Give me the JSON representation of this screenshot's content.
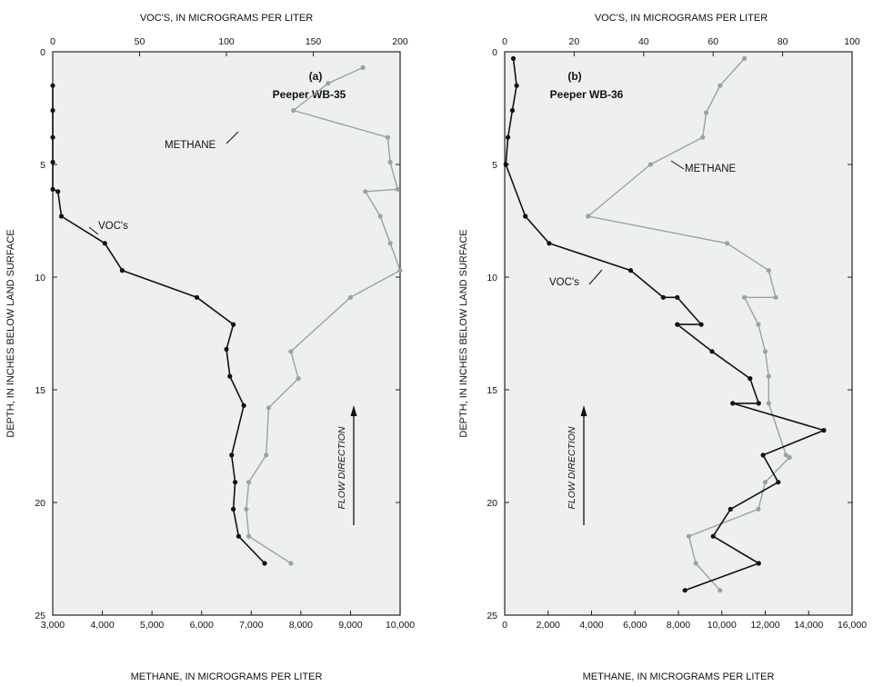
{
  "chart_data": [
    {
      "type": "line",
      "panel_label": "(a)",
      "site": "Peeper WB-35",
      "top_axis_title": "VOC'S, IN MICROGRAMS PER LITER",
      "bottom_axis_title": "METHANE, IN MICROGRAMS PER LITER",
      "ylabel": "DEPTH, IN INCHES BELOW LAND SURFACE",
      "top_axis": {
        "range": [
          0,
          200
        ],
        "ticks": [
          0,
          50,
          100,
          150,
          200
        ],
        "tick_labels": [
          "0",
          "50",
          "100",
          "150",
          "200"
        ]
      },
      "bottom_axis": {
        "range": [
          3000,
          10000
        ],
        "ticks": [
          3000,
          4000,
          5000,
          6000,
          7000,
          8000,
          9000,
          10000
        ],
        "tick_labels": [
          "3,000",
          "4,000",
          "5,000",
          "6,000",
          "7,000",
          "8,000",
          "9,000",
          "10,000"
        ]
      },
      "y_axis": {
        "range": [
          0,
          25
        ],
        "inverted": true,
        "ticks": [
          0,
          5,
          10,
          15,
          20,
          25
        ],
        "tick_labels": [
          "0",
          "5",
          "10",
          "15",
          "20",
          "25"
        ]
      },
      "annotations": {
        "flow": "FLOW DIRECTION"
      },
      "series": [
        {
          "name": "METHANE",
          "axis": "bottom",
          "color": "#9aa39d",
          "points": [
            {
              "value": 9250,
              "depth": 0.7
            },
            {
              "value": 8550,
              "depth": 1.4
            },
            {
              "value": 7850,
              "depth": 2.6
            },
            {
              "value": 9750,
              "depth": 3.8
            },
            {
              "value": 9800,
              "depth": 4.9
            },
            {
              "value": 9950,
              "depth": 6.1
            },
            {
              "value": 9300,
              "depth": 6.2
            },
            {
              "value": 9600,
              "depth": 7.3
            },
            {
              "value": 9800,
              "depth": 8.5
            },
            {
              "value": 10000,
              "depth": 9.7
            },
            {
              "value": 9000,
              "depth": 10.9
            },
            {
              "value": 7800,
              "depth": 13.3
            },
            {
              "value": 7950,
              "depth": 14.5
            },
            {
              "value": 7350,
              "depth": 15.8
            },
            {
              "value": 7300,
              "depth": 17.9
            },
            {
              "value": 6950,
              "depth": 19.1
            },
            {
              "value": 6900,
              "depth": 20.3
            },
            {
              "value": 6950,
              "depth": 21.5
            },
            {
              "value": 7800,
              "depth": 22.7
            }
          ]
        },
        {
          "name": "VOC's",
          "axis": "top",
          "color": "#111111",
          "points": [
            {
              "value": 0,
              "depth": 1.5
            },
            {
              "value": 0,
              "depth": 2.6
            },
            {
              "value": 0,
              "depth": 3.8
            },
            {
              "value": 0,
              "depth": 4.9
            },
            {
              "value": 0,
              "depth": 6.1
            },
            {
              "value": 3,
              "depth": 6.2
            },
            {
              "value": 5,
              "depth": 7.3
            },
            {
              "value": 30,
              "depth": 8.5
            },
            {
              "value": 40,
              "depth": 9.7
            },
            {
              "value": 83,
              "depth": 10.9
            },
            {
              "value": 104,
              "depth": 12.1
            },
            {
              "value": 100,
              "depth": 13.2
            },
            {
              "value": 102,
              "depth": 14.4
            },
            {
              "value": 110,
              "depth": 15.7
            },
            {
              "value": 103,
              "depth": 17.9
            },
            {
              "value": 105,
              "depth": 19.1
            },
            {
              "value": 104,
              "depth": 20.3
            },
            {
              "value": 107,
              "depth": 21.5
            },
            {
              "value": 122,
              "depth": 22.7
            }
          ]
        }
      ]
    },
    {
      "type": "line",
      "panel_label": "(b)",
      "site": "Peeper WB-36",
      "top_axis_title": "VOC'S, IN MICROGRAMS PER LITER",
      "bottom_axis_title": "METHANE, IN MICROGRAMS PER LITER",
      "ylabel": "DEPTH, IN INCHES BELOW LAND SURFACE",
      "top_axis": {
        "range": [
          0,
          100
        ],
        "ticks": [
          0,
          20,
          40,
          60,
          80,
          100
        ],
        "tick_labels": [
          "0",
          "20",
          "40",
          "60",
          "80",
          "100"
        ]
      },
      "bottom_axis": {
        "range": [
          0,
          16000
        ],
        "ticks": [
          0,
          2000,
          4000,
          6000,
          8000,
          10000,
          12000,
          14000,
          16000
        ],
        "tick_labels": [
          "0",
          "2,000",
          "4,000",
          "6,000",
          "8,000",
          "10,000",
          "12,000",
          "14,000",
          "16,000"
        ]
      },
      "y_axis": {
        "range": [
          0,
          25
        ],
        "inverted": true,
        "ticks": [
          0,
          5,
          10,
          15,
          20,
          25
        ],
        "tick_labels": [
          "0",
          "5",
          "10",
          "15",
          "20",
          "25"
        ]
      },
      "annotations": {
        "flow": "FLOW DIRECTION"
      },
      "series": [
        {
          "name": "METHANE",
          "axis": "top",
          "color": "#9aa39d",
          "points": [
            {
              "value": 69,
              "depth": 0.3
            },
            {
              "value": 62,
              "depth": 1.5
            },
            {
              "value": 58,
              "depth": 2.7
            },
            {
              "value": 57,
              "depth": 3.8
            },
            {
              "value": 42,
              "depth": 5.0
            },
            {
              "value": 24,
              "depth": 7.3
            },
            {
              "value": 64,
              "depth": 8.5
            },
            {
              "value": 76,
              "depth": 9.7
            },
            {
              "value": 78,
              "depth": 10.9
            },
            {
              "value": 69,
              "depth": 10.9
            },
            {
              "value": 73,
              "depth": 12.1
            },
            {
              "value": 75,
              "depth": 13.3
            },
            {
              "value": 76,
              "depth": 14.4
            },
            {
              "value": 76,
              "depth": 15.6
            },
            {
              "value": 81,
              "depth": 17.9
            },
            {
              "value": 82,
              "depth": 18.0
            },
            {
              "value": 75,
              "depth": 19.1
            },
            {
              "value": 73,
              "depth": 20.3
            },
            {
              "value": 53,
              "depth": 21.5
            },
            {
              "value": 55,
              "depth": 22.7
            },
            {
              "value": 62,
              "depth": 23.9
            }
          ]
        },
        {
          "name": "VOC's",
          "axis": "bottom",
          "color": "#111111",
          "points": [
            {
              "value": 400,
              "depth": 0.3
            },
            {
              "value": 550,
              "depth": 1.5
            },
            {
              "value": 350,
              "depth": 2.6
            },
            {
              "value": 150,
              "depth": 3.8
            },
            {
              "value": 50,
              "depth": 5.0
            },
            {
              "value": 950,
              "depth": 7.3
            },
            {
              "value": 2050,
              "depth": 8.5
            },
            {
              "value": 5800,
              "depth": 9.7
            },
            {
              "value": 7300,
              "depth": 10.9
            },
            {
              "value": 7950,
              "depth": 10.9
            },
            {
              "value": 9050,
              "depth": 12.1
            },
            {
              "value": 7950,
              "depth": 12.1
            },
            {
              "value": 9550,
              "depth": 13.3
            },
            {
              "value": 11300,
              "depth": 14.5
            },
            {
              "value": 11700,
              "depth": 15.6
            },
            {
              "value": 10500,
              "depth": 15.6
            },
            {
              "value": 14700,
              "depth": 16.8
            },
            {
              "value": 11900,
              "depth": 17.9
            },
            {
              "value": 12600,
              "depth": 19.1
            },
            {
              "value": 10400,
              "depth": 20.3
            },
            {
              "value": 9600,
              "depth": 21.5
            },
            {
              "value": 11700,
              "depth": 22.7
            },
            {
              "value": 8300,
              "depth": 23.9
            }
          ]
        }
      ]
    }
  ]
}
